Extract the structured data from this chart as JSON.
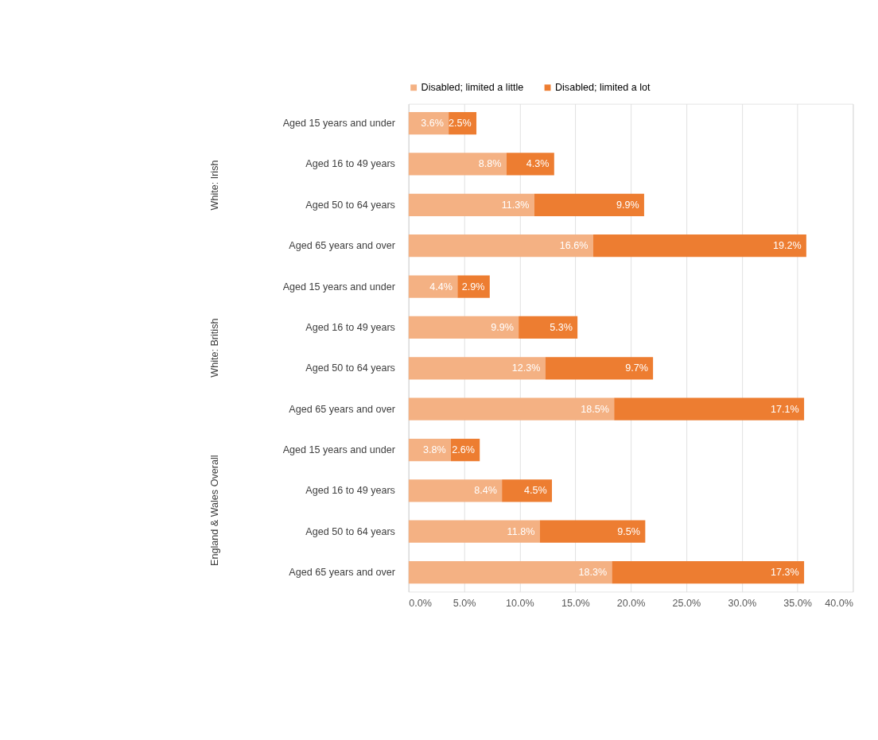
{
  "chart_data": {
    "type": "bar",
    "orientation": "horizontal",
    "stacked": true,
    "categories": [
      "Aged 15 years and under",
      "Aged 16 to 49 years",
      "Aged 50 to 64 years",
      "Aged 65 years and over",
      "Aged 15 years and under",
      "Aged 16 to 49 years",
      "Aged 50 to 64 years",
      "Aged 65 years and over",
      "Aged 15 years and under",
      "Aged 16 to 49 years",
      "Aged 50 to 64 years",
      "Aged 65 years and over"
    ],
    "series": [
      {
        "name": "Disabled; limited a little",
        "color": "#f4b183",
        "values": [
          3.6,
          8.8,
          11.3,
          16.6,
          4.4,
          9.9,
          12.3,
          18.5,
          3.8,
          8.4,
          11.8,
          18.3
        ],
        "value_labels": [
          "3.6%",
          "8.8%",
          "11.3%",
          "16.6%",
          "4.4%",
          "9.9%",
          "12.3%",
          "18.5%",
          "3.8%",
          "8.4%",
          "11.8%",
          "18.3%"
        ]
      },
      {
        "name": "Disabled; limited a lot",
        "color": "#ed7d31",
        "values": [
          2.5,
          4.3,
          9.9,
          19.2,
          2.9,
          5.3,
          9.7,
          17.1,
          2.6,
          4.5,
          9.5,
          17.3
        ],
        "value_labels": [
          "2.5%",
          "4.3%",
          "9.9%",
          "19.2%",
          "2.9%",
          "5.3%",
          "9.7%",
          "17.1%",
          "2.6%",
          "4.5%",
          "9.5%",
          "17.3%"
        ]
      }
    ],
    "annotations": [
      "White: Irish",
      "White: British",
      "England & Wales Overall"
    ],
    "xlim": [
      0,
      40
    ],
    "xticks": [
      {
        "value": 0,
        "label": "0.0%"
      },
      {
        "value": 5,
        "label": "5.0%"
      },
      {
        "value": 10,
        "label": "10.0%"
      },
      {
        "value": 15,
        "label": "15.0%"
      },
      {
        "value": 20,
        "label": "20.0%"
      },
      {
        "value": 25,
        "label": "25.0%"
      },
      {
        "value": 30,
        "label": "30.0%"
      },
      {
        "value": 35,
        "label": "35.0%"
      },
      {
        "value": 40,
        "label": "40.0%"
      }
    ],
    "grid": "x",
    "legend": "top"
  }
}
